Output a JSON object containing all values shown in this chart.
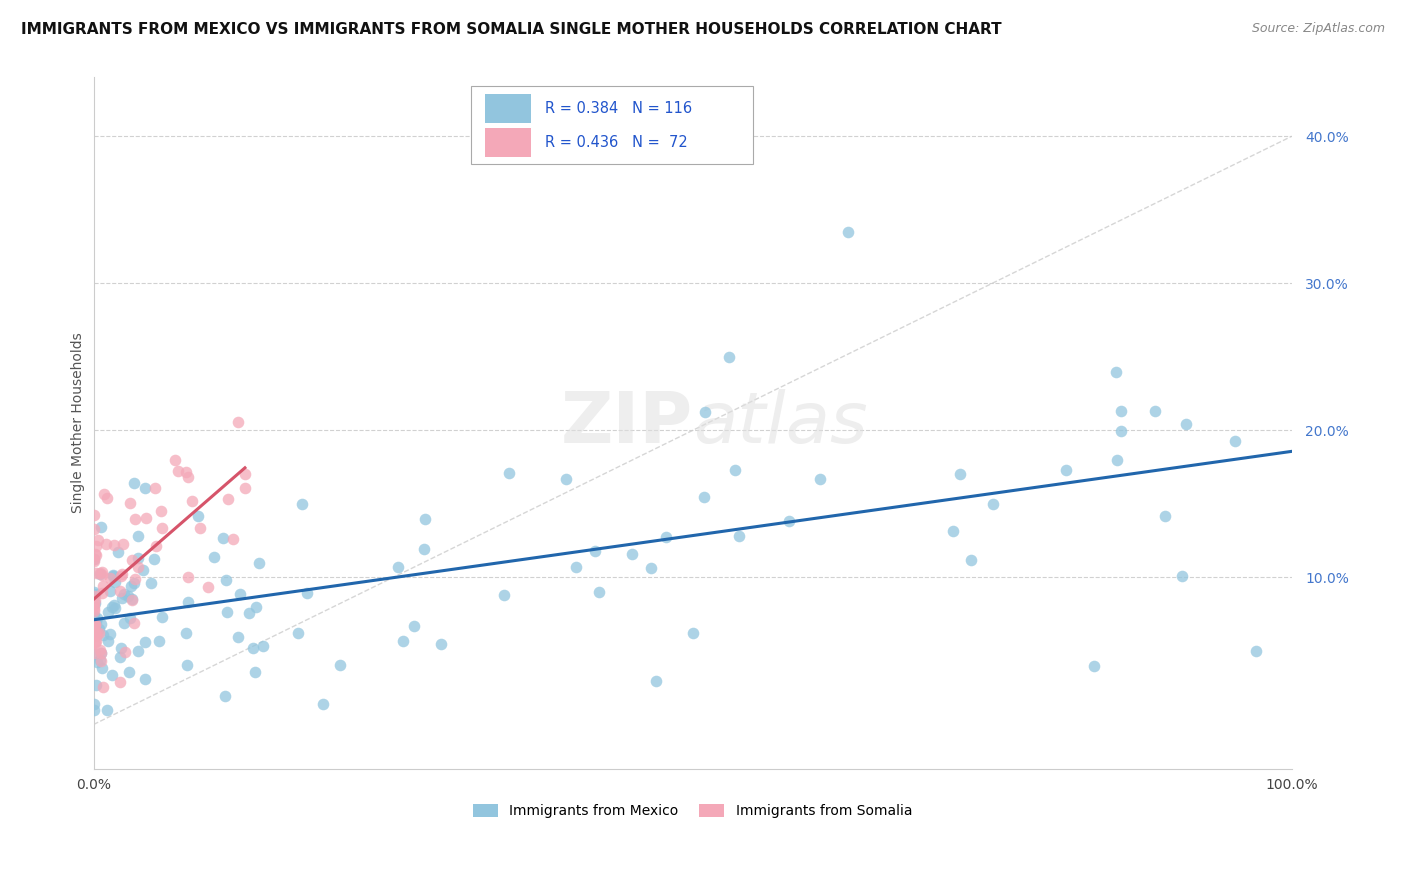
{
  "title": "IMMIGRANTS FROM MEXICO VS IMMIGRANTS FROM SOMALIA SINGLE MOTHER HOUSEHOLDS CORRELATION CHART",
  "source": "Source: ZipAtlas.com",
  "ylabel": "Single Mother Households",
  "xlim": [
    0.0,
    1.0
  ],
  "ylim": [
    -0.03,
    0.44
  ],
  "mexico_color": "#92c5de",
  "somalia_color": "#f4a8b8",
  "mexico_line_color": "#2166ac",
  "somalia_line_color": "#d6546a",
  "ref_line_color": "#cccccc",
  "legend_mexico_label": "R = 0.384   N = 116",
  "legend_somalia_label": "R = 0.436   N =  72",
  "legend_bottom_mexico": "Immigrants from Mexico",
  "legend_bottom_somalia": "Immigrants from Somalia",
  "watermark": "ZIPatlas",
  "background_color": "#ffffff",
  "grid_color": "#cccccc",
  "title_fontsize": 11,
  "source_fontsize": 9,
  "legend_fontsize": 10,
  "ytick_color": "#4477cc",
  "xtick_color": "#444444"
}
